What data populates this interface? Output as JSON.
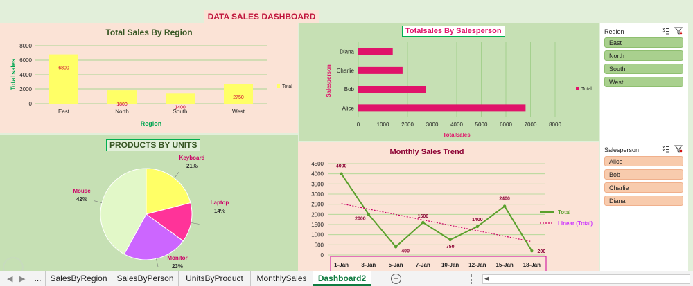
{
  "dashboard": {
    "title": "DATA SALES DASHBOARD"
  },
  "region_chart": {
    "title": "Total Sales By Region",
    "ylabel": "Total sales",
    "xlabel": "Region",
    "legend": "Total",
    "y_ticks": [
      "0",
      "2000",
      "4000",
      "6000",
      "8000"
    ],
    "colors": {
      "bar": "#ffff66",
      "title": "#375623",
      "label": "#cc0033",
      "axis_title": "#00a651"
    }
  },
  "salesperson_chart": {
    "title": "Totalsales By Salesperson",
    "ylabel": "Salesperson",
    "xlabel": "TotalSales",
    "legend": "Total",
    "x_ticks": [
      "0",
      "1000",
      "2000",
      "3000",
      "4000",
      "5000",
      "6000",
      "7000",
      "8000"
    ],
    "colors": {
      "bar": "#e0136a",
      "title": "#e0136a"
    }
  },
  "products_chart": {
    "title": "PRODUCTS BY UNITS",
    "colors": {
      "Keyboard": "#ffff66",
      "Laptop": "#ff3399",
      "Monitor": "#cc66ff",
      "Mouse": "#e2f8c8",
      "label": "#cc0066",
      "pct": "#333333"
    }
  },
  "trend_chart": {
    "title": "Monthly Sales Trend",
    "legend_total": "Total",
    "legend_linear": "Linear (Total)",
    "y_ticks": [
      "0",
      "500",
      "1000",
      "1500",
      "2000",
      "2500",
      "3000",
      "3500",
      "4000",
      "4500"
    ],
    "colors": {
      "line": "#5aa02c",
      "trend": "#cc0066",
      "label": "#8b0033",
      "title": "#8b0033",
      "linear_legend": "#cc33ff"
    }
  },
  "chart_data": [
    {
      "type": "bar",
      "title": "Total Sales By Region",
      "xlabel": "Region",
      "ylabel": "Total sales",
      "categories": [
        "East",
        "North",
        "South",
        "West"
      ],
      "series": [
        {
          "name": "Total",
          "values": [
            6800,
            1800,
            1400,
            2750
          ]
        }
      ],
      "ylim": [
        0,
        8000
      ],
      "grid": true,
      "legend": "right"
    },
    {
      "type": "bar",
      "orientation": "horizontal",
      "title": "Totalsales By Salesperson",
      "xlabel": "TotalSales",
      "ylabel": "Salesperson",
      "categories": [
        "Alice",
        "Bob",
        "Charlie",
        "Diana"
      ],
      "series": [
        {
          "name": "Total",
          "values": [
            6800,
            2750,
            1800,
            1400
          ]
        }
      ],
      "xlim": [
        0,
        8000
      ],
      "grid": true,
      "legend": "right"
    },
    {
      "type": "pie",
      "title": "PRODUCTS BY UNITS",
      "labels": [
        "Keyboard",
        "Laptop",
        "Monitor",
        "Mouse"
      ],
      "values": [
        21,
        14,
        23,
        42
      ],
      "display": [
        "21%",
        "14%",
        "23%",
        "42%"
      ]
    },
    {
      "type": "line",
      "title": "Monthly Sales Trend",
      "categories": [
        "1-Jan",
        "3-Jan",
        "5-Jan",
        "7-Jan",
        "10-Jan",
        "12-Jan",
        "15-Jan",
        "18-Jan"
      ],
      "series": [
        {
          "name": "Total",
          "values": [
            4000,
            2000,
            400,
            1600,
            750,
            1400,
            2400,
            200
          ]
        }
      ],
      "trendline": {
        "name": "Linear (Total)",
        "type": "linear"
      },
      "ylim": [
        0,
        4500
      ],
      "grid": true,
      "legend": "right"
    }
  ],
  "region_slicer": {
    "header": "Region",
    "items": [
      "East",
      "North",
      "South",
      "West"
    ],
    "colors": {
      "item": "#a9d08e",
      "border": "#8fbf70"
    }
  },
  "salesperson_slicer": {
    "header": "Salesperson",
    "items": [
      "Alice",
      "Bob",
      "Charlie",
      "Diana"
    ],
    "colors": {
      "item": "#f8cbad",
      "border": "#f0b08c"
    }
  },
  "tabs": {
    "more": "...",
    "sheets": [
      "SalesByRegion",
      "SalesByPerson",
      "UnitsByProduct",
      "MonthlySales",
      "Dashboard2"
    ],
    "active": "Dashboard2",
    "add_label": "+"
  }
}
